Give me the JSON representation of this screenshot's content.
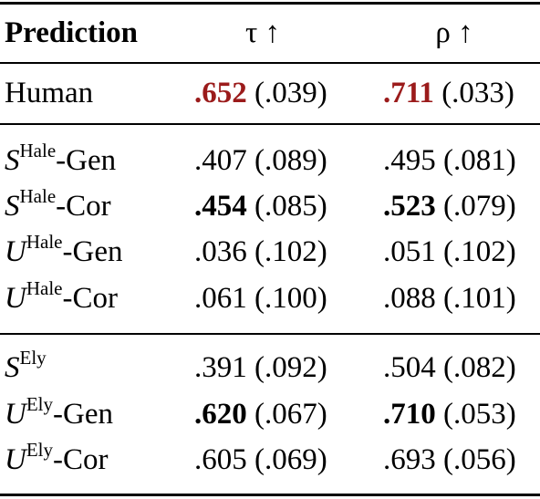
{
  "header": {
    "col0": "Prediction",
    "col1": "τ ↑",
    "col2": "ρ ↑"
  },
  "rows": [
    {
      "base": "Human",
      "sup": "",
      "suffix": "",
      "tau": ".652",
      "tau_se": " (.039)",
      "rho": ".711",
      "rho_se": " (.033)",
      "tau_style": "red",
      "rho_style": "red"
    },
    {
      "base": "S",
      "sup": "Hale",
      "suffix": "-Gen",
      "tau": ".407",
      "tau_se": " (.089)",
      "rho": ".495",
      "rho_se": " (.081)",
      "tau_style": "",
      "rho_style": ""
    },
    {
      "base": "S",
      "sup": "Hale",
      "suffix": "-Cor",
      "tau": ".454",
      "tau_se": " (.085)",
      "rho": ".523",
      "rho_se": " (.079)",
      "tau_style": "b",
      "rho_style": "b"
    },
    {
      "base": "U",
      "sup": "Hale",
      "suffix": "-Gen",
      "tau": ".036",
      "tau_se": " (.102)",
      "rho": ".051",
      "rho_se": " (.102)",
      "tau_style": "",
      "rho_style": ""
    },
    {
      "base": "U",
      "sup": "Hale",
      "suffix": "-Cor",
      "tau": ".061",
      "tau_se": " (.100)",
      "rho": ".088",
      "rho_se": " (.101)",
      "tau_style": "",
      "rho_style": ""
    },
    {
      "base": "S",
      "sup": "Ely",
      "suffix": "",
      "tau": ".391",
      "tau_se": " (.092)",
      "rho": ".504",
      "rho_se": " (.082)",
      "tau_style": "",
      "rho_style": ""
    },
    {
      "base": "U",
      "sup": "Ely",
      "suffix": "-Gen",
      "tau": ".620",
      "tau_se": " (.067)",
      "rho": ".710",
      "rho_se": " (.053)",
      "tau_style": "b",
      "rho_style": "b"
    },
    {
      "base": "U",
      "sup": "Ely",
      "suffix": "-Cor",
      "tau": ".605",
      "tau_se": " (.069)",
      "rho": ".693",
      "rho_se": " (.056)",
      "tau_style": "",
      "rho_style": ""
    }
  ]
}
